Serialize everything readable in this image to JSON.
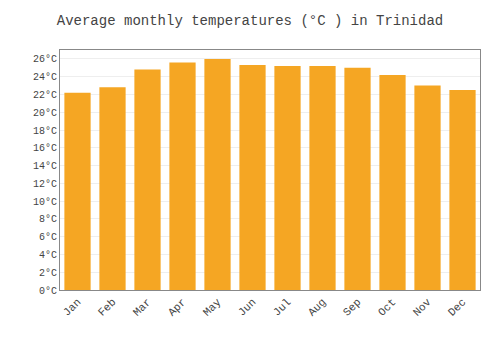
{
  "chart_data": {
    "type": "bar",
    "title": "Average monthly temperatures (°C ) in Trinidad",
    "categories": [
      "Jan",
      "Feb",
      "Mar",
      "Apr",
      "May",
      "Jun",
      "Jul",
      "Aug",
      "Sep",
      "Oct",
      "Nov",
      "Dec"
    ],
    "values": [
      22.2,
      22.8,
      24.8,
      25.6,
      26.0,
      25.3,
      25.2,
      25.2,
      25.0,
      24.2,
      23.0,
      22.5
    ],
    "color": "#F5A623",
    "ylim": [
      0,
      27
    ],
    "yticks": [
      {
        "value": 0,
        "label": "0°C"
      },
      {
        "value": 2,
        "label": "2°C"
      },
      {
        "value": 4,
        "label": "4°C"
      },
      {
        "value": 6,
        "label": "6°C"
      },
      {
        "value": 8,
        "label": "8°C"
      },
      {
        "value": 10,
        "label": "10°C"
      },
      {
        "value": 12,
        "label": "12°C"
      },
      {
        "value": 14,
        "label": "14°C"
      },
      {
        "value": 16,
        "label": "16°C"
      },
      {
        "value": 18,
        "label": "18°C"
      },
      {
        "value": 20,
        "label": "20°C"
      },
      {
        "value": 22,
        "label": "22°C"
      },
      {
        "value": 24,
        "label": "24°C"
      },
      {
        "value": 26,
        "label": "26°C"
      }
    ],
    "grid": true
  }
}
